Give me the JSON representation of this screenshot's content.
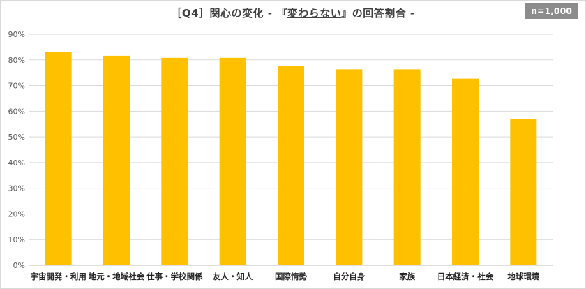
{
  "title_parts": {
    "prefix": "［Q4］関心の変化 - 『",
    "highlight": "変わらない",
    "suffix": "』の回答割合 -"
  },
  "n_label": "n=1,000",
  "colors": {
    "bar": "#FFC000",
    "grid": "#d9d9d9",
    "axis": "#bfbfbf"
  },
  "chart_data": {
    "type": "bar",
    "title": "［Q4］関心の変化 - 『変わらない』の回答割合 -",
    "categories": [
      "宇宙開発・利用",
      "地元・地域社会",
      "仕事・学校関係",
      "友人・知人",
      "国際情勢",
      "自分自身",
      "家族",
      "日本経済・社会",
      "地球環境"
    ],
    "values": [
      83.0,
      81.6,
      80.8,
      80.8,
      77.7,
      76.3,
      76.3,
      72.7,
      57.1
    ],
    "ylim": [
      0,
      90
    ],
    "yticks": [
      0,
      10,
      20,
      30,
      40,
      50,
      60,
      70,
      80,
      90
    ],
    "yunit": "%",
    "grid": true,
    "legend": "none"
  }
}
